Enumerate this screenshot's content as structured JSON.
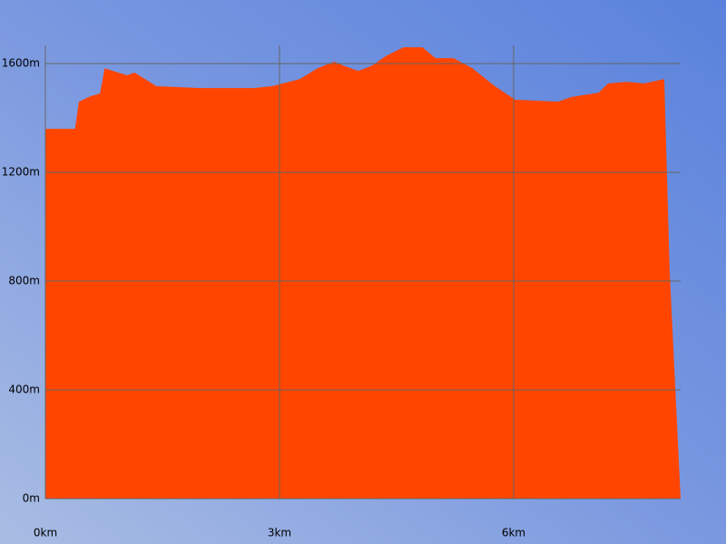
{
  "chart_data": {
    "type": "area",
    "x": [
      0,
      0.38,
      0.43,
      0.58,
      0.7,
      0.76,
      0.93,
      1.05,
      1.14,
      1.28,
      1.42,
      1.98,
      2.67,
      2.91,
      3.26,
      3.49,
      3.7,
      3.84,
      4.01,
      4.19,
      4.36,
      4.59,
      4.83,
      5.0,
      5.23,
      5.47,
      5.76,
      6.02,
      6.57,
      6.74,
      7.09,
      7.21,
      7.44,
      7.67,
      7.93,
      8.0,
      8.14
    ],
    "values": [
      1360,
      1360,
      1460,
      1480,
      1490,
      1583,
      1567,
      1557,
      1567,
      1543,
      1517,
      1510,
      1510,
      1517,
      1543,
      1583,
      1607,
      1590,
      1573,
      1593,
      1627,
      1660,
      1660,
      1620,
      1620,
      1583,
      1517,
      1467,
      1460,
      1477,
      1493,
      1527,
      1533,
      1527,
      1543,
      833,
      0
    ],
    "color": "#ff4500",
    "xlim": [
      0,
      8.14
    ],
    "ylim": [
      0,
      1667
    ],
    "xticks": [
      {
        "value": 0,
        "label": "0km"
      },
      {
        "value": 3,
        "label": "3km"
      },
      {
        "value": 6,
        "label": "6km"
      }
    ],
    "yticks": [
      {
        "value": 0,
        "label": "0m"
      },
      {
        "value": 400,
        "label": "400m"
      },
      {
        "value": 800,
        "label": "800m"
      },
      {
        "value": 1200,
        "label": "1200m"
      },
      {
        "value": 1600,
        "label": "1600m"
      }
    ],
    "grid": true
  }
}
